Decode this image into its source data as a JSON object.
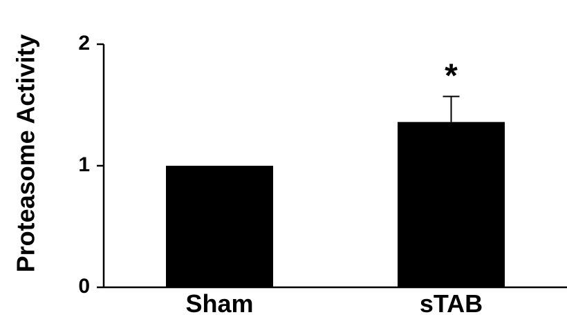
{
  "chart_data": {
    "type": "bar",
    "title": "",
    "xlabel": "",
    "ylabel": "Proteasome Activity",
    "categories": [
      "Sham",
      "sTAB"
    ],
    "values": [
      1.0,
      1.36
    ],
    "error_upper": [
      0,
      0.21
    ],
    "significance": [
      "",
      "*"
    ],
    "ylim": [
      0,
      2
    ],
    "yticks": [
      0,
      1,
      2
    ],
    "grid": false,
    "legend": "none",
    "bar_color": "#000000"
  }
}
